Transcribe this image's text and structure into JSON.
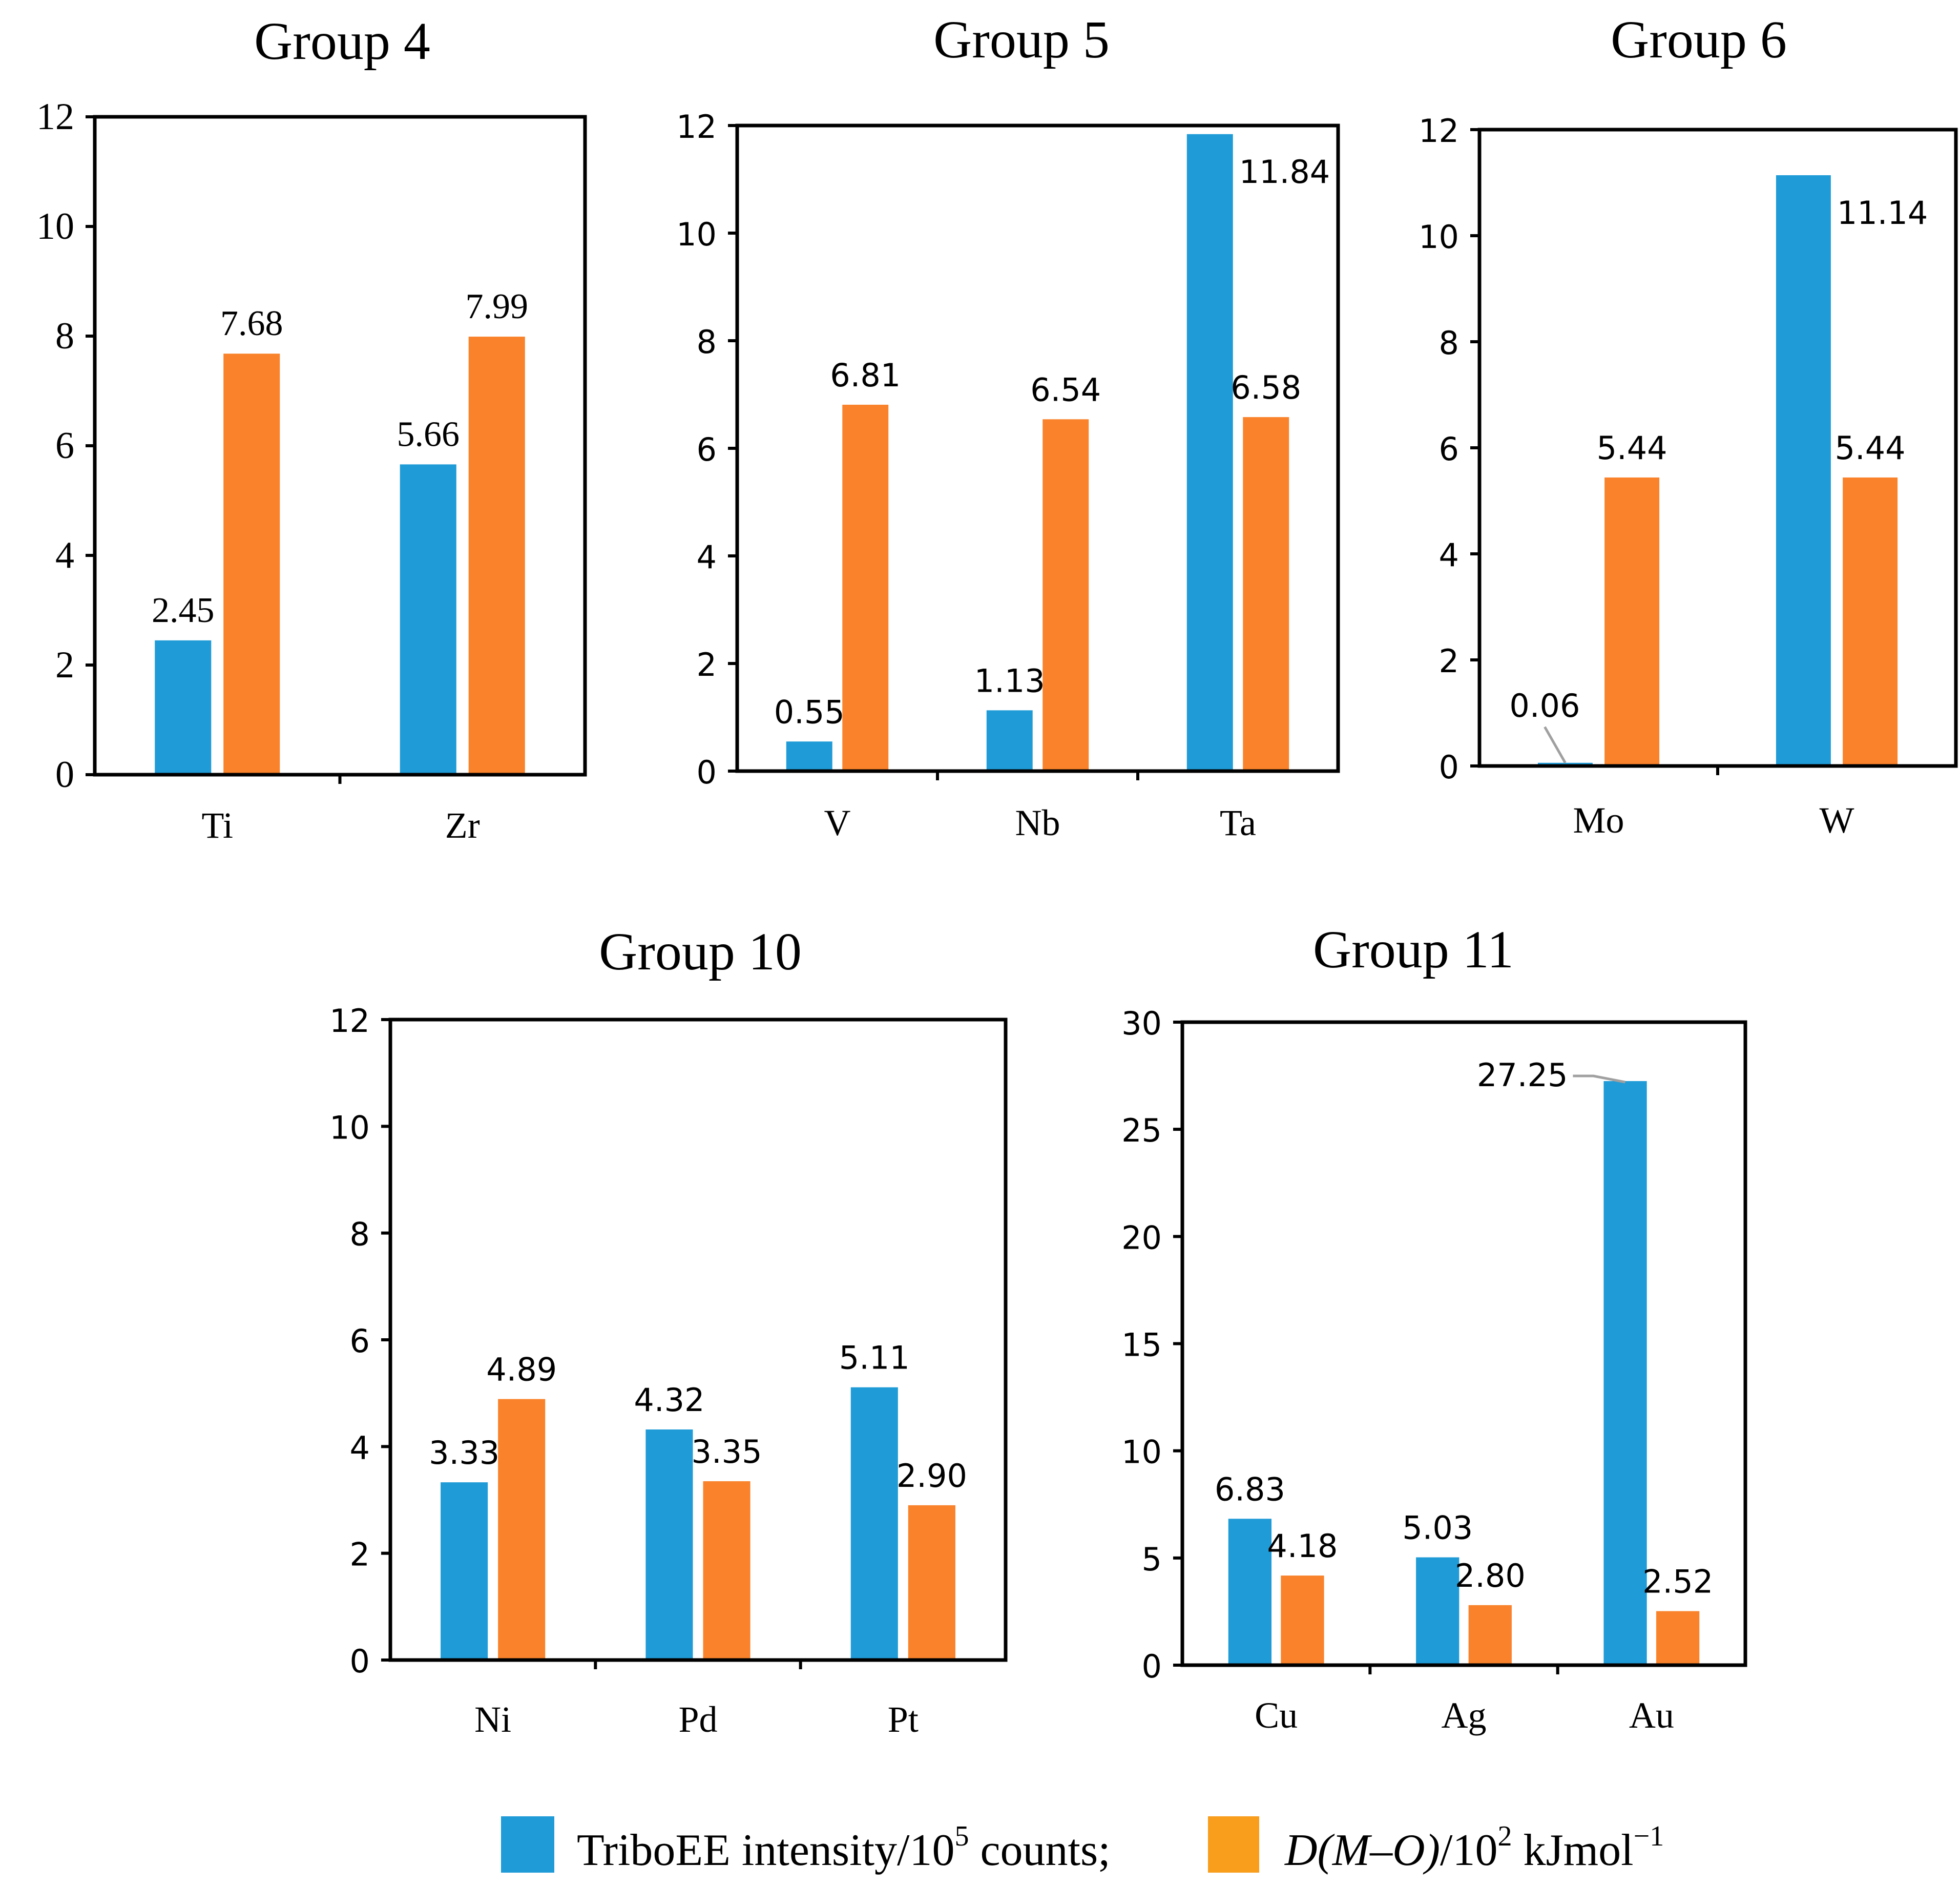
{
  "colors": {
    "triboee": "#1f9bd7",
    "dmo": "#f9822a",
    "dmo_swatch": "#f89d1c"
  },
  "legend": {
    "triboee_label": "TriboEE intensity/10",
    "triboee_sup": "5",
    "triboee_tail": " counts;",
    "dmo_italic": "D(M–O)",
    "dmo_mid": "/10",
    "dmo_sup": "2",
    "dmo_tail": " kJmol",
    "dmo_tail_sup": "−1"
  },
  "chart_data": [
    {
      "type": "bar",
      "title": "Group 4",
      "categories": [
        "Ti",
        "Zr"
      ],
      "ylim": [
        0,
        12
      ],
      "yticks": [
        0,
        2,
        4,
        6,
        8,
        10,
        12
      ],
      "series": [
        {
          "name": "TriboEE intensity/10^5 counts",
          "values": [
            2.45,
            5.66
          ],
          "labels": [
            "2.45",
            "5.66"
          ]
        },
        {
          "name": "D(M–O)/10^2 kJmol^-1",
          "values": [
            7.68,
            7.99
          ],
          "labels": [
            "7.68",
            "7.99"
          ]
        }
      ]
    },
    {
      "type": "bar",
      "title": "Group 5",
      "categories": [
        "V",
        "Nb",
        "Ta"
      ],
      "ylim": [
        0,
        12
      ],
      "yticks": [
        0,
        2,
        4,
        6,
        8,
        10,
        12
      ],
      "series": [
        {
          "name": "TriboEE intensity/10^5 counts",
          "values": [
            0.55,
            1.13,
            11.84
          ],
          "labels": [
            "0.55",
            "1.13",
            "11.84"
          ]
        },
        {
          "name": "D(M–O)/10^2 kJmol^-1",
          "values": [
            6.81,
            6.54,
            6.58
          ],
          "labels": [
            "6.81",
            "6.54",
            "6.58"
          ]
        }
      ]
    },
    {
      "type": "bar",
      "title": "Group 6",
      "categories": [
        "Mo",
        "W"
      ],
      "ylim": [
        0,
        12
      ],
      "yticks": [
        0,
        2,
        4,
        6,
        8,
        10,
        12
      ],
      "series": [
        {
          "name": "TriboEE intensity/10^5 counts",
          "values": [
            0.06,
            11.14
          ],
          "labels": [
            "0.06",
            "11.14"
          ]
        },
        {
          "name": "D(M–O)/10^2 kJmol^-1",
          "values": [
            5.44,
            5.44
          ],
          "labels": [
            "5.44",
            "5.44"
          ]
        }
      ]
    },
    {
      "type": "bar",
      "title": "Group 10",
      "categories": [
        "Ni",
        "Pd",
        "Pt"
      ],
      "ylim": [
        0,
        12
      ],
      "yticks": [
        0,
        2,
        4,
        6,
        8,
        10,
        12
      ],
      "series": [
        {
          "name": "TriboEE intensity/10^5 counts",
          "values": [
            3.33,
            4.32,
            5.11
          ],
          "labels": [
            "3.33",
            "4.32",
            "5.11"
          ]
        },
        {
          "name": "D(M–O)/10^2 kJmol^-1",
          "values": [
            4.89,
            3.35,
            2.9
          ],
          "labels": [
            "4.89",
            "3.35",
            "2.90"
          ]
        }
      ]
    },
    {
      "type": "bar",
      "title": "Group 11",
      "categories": [
        "Cu",
        "Ag",
        "Au"
      ],
      "ylim": [
        0,
        30
      ],
      "yticks": [
        0,
        5,
        10,
        15,
        20,
        25,
        30
      ],
      "series": [
        {
          "name": "TriboEE intensity/10^5 counts",
          "values": [
            6.83,
            5.03,
            27.25
          ],
          "labels": [
            "6.83",
            "5.03",
            "27.25"
          ]
        },
        {
          "name": "D(M–O)/10^2 kJmol^-1",
          "values": [
            4.18,
            2.8,
            2.52
          ],
          "labels": [
            "4.18",
            "2.80",
            "2.52"
          ]
        }
      ]
    }
  ]
}
